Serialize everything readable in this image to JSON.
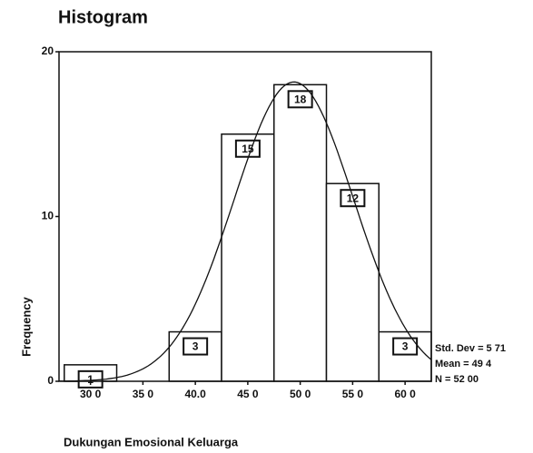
{
  "chart_data": {
    "type": "histogram",
    "title": "Histogram",
    "x_label": "Dukungan Emosional Keluarga",
    "y_label": "Frequency",
    "bins": [
      27.5,
      32.5,
      37.5,
      42.5,
      47.5,
      52.5,
      57.5,
      62.5
    ],
    "values": [
      1,
      0,
      3,
      15,
      18,
      12,
      3
    ],
    "color": "#ffffff",
    "xlim": [
      27,
      62.5
    ],
    "xticks": [
      {
        "value": 30,
        "label": "30 0"
      },
      {
        "value": 35,
        "label": "35 0"
      },
      {
        "value": 40,
        "label": "40.0"
      },
      {
        "value": 45,
        "label": "45 0"
      },
      {
        "value": 50,
        "label": "50 0"
      },
      {
        "value": 55,
        "label": "55 0"
      },
      {
        "value": 60,
        "label": "60 0"
      }
    ],
    "ylim": [
      0,
      20
    ],
    "yticks": [
      0,
      10,
      20
    ],
    "normal_curve": {
      "std_dev": {
        "value": 5.71,
        "label": "Std. Dev = 5 71"
      },
      "mean": {
        "value": 49.4,
        "label": "Mean = 49 4"
      },
      "n": {
        "value": 52,
        "label": "N = 52 00"
      }
    }
  }
}
